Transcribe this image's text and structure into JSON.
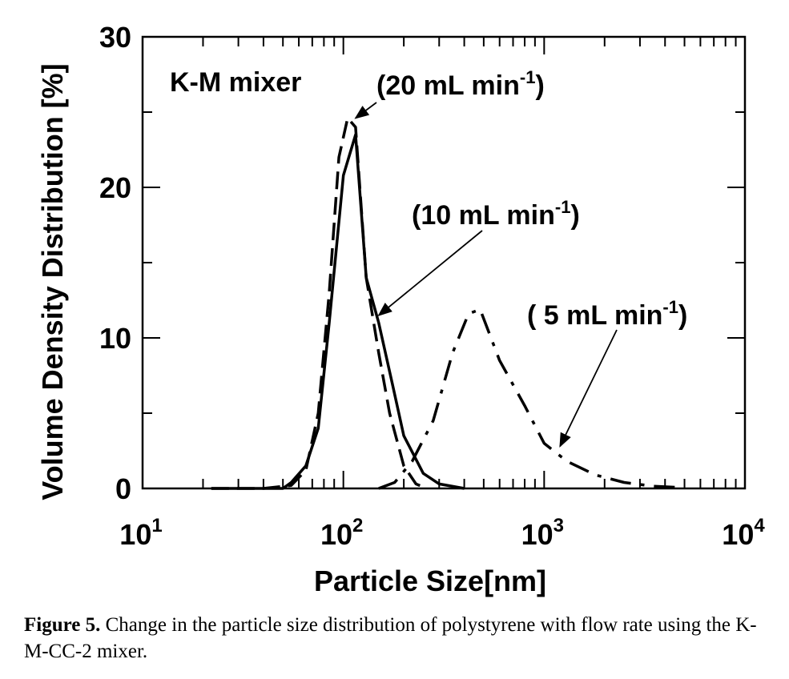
{
  "chart_data": {
    "type": "line",
    "title": "",
    "xlabel": "Particle Size[nm]",
    "ylabel": "Volume Density Distribution [%]",
    "xscale": "log",
    "xlim": [
      10,
      10000
    ],
    "ylim": [
      0,
      30
    ],
    "x_ticks": [
      {
        "base": "10",
        "exp": "1"
      },
      {
        "base": "10",
        "exp": "2"
      },
      {
        "base": "10",
        "exp": "3"
      },
      {
        "base": "10",
        "exp": "4"
      }
    ],
    "y_ticks": [
      "0",
      "10",
      "20",
      "30"
    ],
    "grid": false,
    "inset_label": "K-M mixer",
    "series": [
      {
        "name": "(20 mL min-1)",
        "style": "dashed",
        "x": [
          22,
          40,
          55,
          65,
          75,
          85,
          95,
          105,
          115,
          130,
          150,
          170,
          200,
          230,
          260
        ],
        "y": [
          0,
          0,
          0.2,
          1.2,
          5,
          13,
          22,
          24.6,
          24,
          14,
          9,
          5,
          1.5,
          0.3,
          0
        ]
      },
      {
        "name": "(10 mL min-1)",
        "style": "solid",
        "x": [
          22,
          40,
          50,
          55,
          65,
          75,
          85,
          100,
          115,
          130,
          150,
          175,
          200,
          250,
          300,
          400
        ],
        "y": [
          0,
          0,
          0,
          0.4,
          1.5,
          4,
          11,
          20.8,
          23.5,
          14,
          11,
          7,
          3.5,
          1,
          0.3,
          0
        ]
      },
      {
        "name": "( 5 mL min-1)",
        "style": "dash-dot",
        "x": [
          150,
          180,
          220,
          280,
          350,
          420,
          480,
          600,
          800,
          1000,
          1300,
          1800,
          2500,
          3500,
          5000
        ],
        "y": [
          0,
          0.4,
          1.8,
          4.5,
          9,
          11.6,
          11.9,
          8.5,
          5.5,
          3,
          1.8,
          0.9,
          0.4,
          0.15,
          0.05
        ]
      }
    ],
    "annotations": [
      {
        "text": "(20 mL min",
        "sup": "-1",
        "close": ")",
        "series_index": 0
      },
      {
        "text": "(10 mL min",
        "sup": "-1",
        "close": ")",
        "series_index": 1
      },
      {
        "text": "( 5 mL min",
        "sup": "-1",
        "close": ")",
        "series_index": 2
      }
    ]
  },
  "caption": {
    "label": "Figure 5.",
    "text": " Change in the particle size distribution of polystyrene with flow rate using the K-M-CC-2 mixer."
  }
}
